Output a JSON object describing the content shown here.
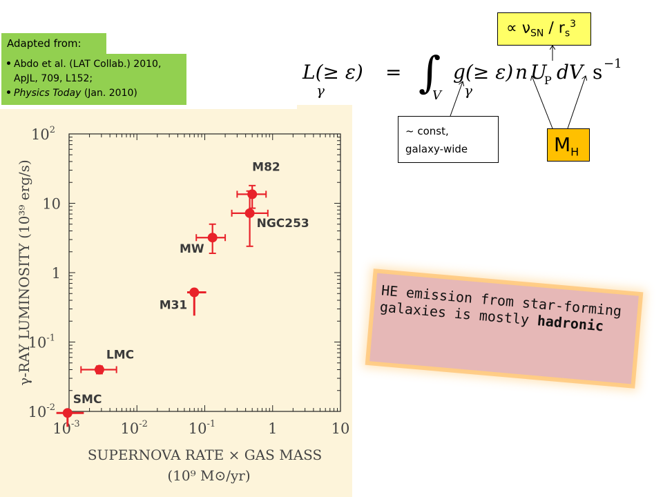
{
  "adapted_label": "Adapted from:",
  "references": [
    {
      "text": "Abdo et al. (LAT Collab.) 2010, ApJL, 709, L152;"
    },
    {
      "pre": "",
      "ital": "Physics Today",
      "post": " (Jan. 2010)"
    }
  ],
  "proportional_box": {
    "symbol": "∝ ν",
    "sub": "SN",
    "mid": " / r",
    "sub2": "s",
    "sup": "3"
  },
  "const_box": {
    "line1": "~ const,",
    "line2": "galaxy-wide"
  },
  "mh_box": {
    "main": "M",
    "sub": "H"
  },
  "conclusion": {
    "text": "HE emission from star-forming galaxies is mostly ",
    "bold": "hadronic"
  },
  "equation": {
    "lhs": "L(≥ ε)",
    "eq": "=",
    "integral": "∫",
    "lower": "V",
    "integrand_g": "g(≥ ε)",
    "n": "n",
    "U": "U",
    "U_sub": "P",
    "dV": "dV",
    "unit": "s",
    "unit_exp": "−1",
    "gamma": "γ"
  },
  "chart_data": {
    "type": "scatter",
    "xlabel_line1": "SUPERNOVA RATE × GAS MASS",
    "xlabel_line2": "(10⁹ M⊙/yr)",
    "ylabel": "γ-RAY LUMINOSITY (10³⁹ erg/s)",
    "xscale": "log",
    "yscale": "log",
    "xlim": [
      0.001,
      10
    ],
    "ylim": [
      0.01,
      100
    ],
    "xticks": [
      {
        "base": "10",
        "exp": "-3",
        "v": 0.001
      },
      {
        "base": "10",
        "exp": "-2",
        "v": 0.01
      },
      {
        "base": "10",
        "exp": "-1",
        "v": 0.1
      },
      {
        "base": "1",
        "exp": "",
        "v": 1
      },
      {
        "base": "10",
        "exp": "",
        "v": 10
      }
    ],
    "yticks": [
      {
        "base": "10",
        "exp": "-2",
        "v": 0.01
      },
      {
        "base": "10",
        "exp": "-1",
        "v": 0.1
      },
      {
        "base": "1",
        "exp": "",
        "v": 1
      },
      {
        "base": "10",
        "exp": "",
        "v": 10
      },
      {
        "base": "10",
        "exp": "2",
        "v": 100
      }
    ],
    "points": [
      {
        "name": "M82",
        "x": 0.5,
        "y": 13.5,
        "xerr": [
          0.3,
          0.8
        ],
        "yerr": [
          8.5,
          18
        ],
        "kind": "detection"
      },
      {
        "name": "NGC253",
        "x": 0.46,
        "y": 7.2,
        "xerr": [
          0.25,
          0.85
        ],
        "yerr": [
          2.4,
          15
        ],
        "kind": "detection"
      },
      {
        "name": "MW",
        "x": 0.13,
        "y": 3.2,
        "xerr": [
          0.075,
          0.2
        ],
        "yerr": [
          1.9,
          5
        ],
        "kind": "detection"
      },
      {
        "name": "M31",
        "x": 0.07,
        "y": 0.52,
        "xerr": [
          0.055,
          0.105
        ],
        "yerr": [
          0.24,
          0.52
        ],
        "kind": "limit"
      },
      {
        "name": "LMC",
        "x": 0.0028,
        "y": 0.04,
        "xerr": [
          0.0015,
          0.005
        ],
        "yerr": [
          0.035,
          0.045
        ],
        "kind": "detection"
      },
      {
        "name": "SMC",
        "x": 0.00095,
        "y": 0.0095,
        "xerr": [
          0.00065,
          0.00165
        ],
        "yerr": [
          0.006,
          0.0095
        ],
        "kind": "limit"
      }
    ],
    "marker_color": "#e8222a"
  },
  "colors": {
    "panel_bg": "#fdf4da",
    "green_box": "#92d050",
    "yellow_box": "#ffff66",
    "orange_box": "#ffc000",
    "pink_box": "#e6b8b7"
  }
}
